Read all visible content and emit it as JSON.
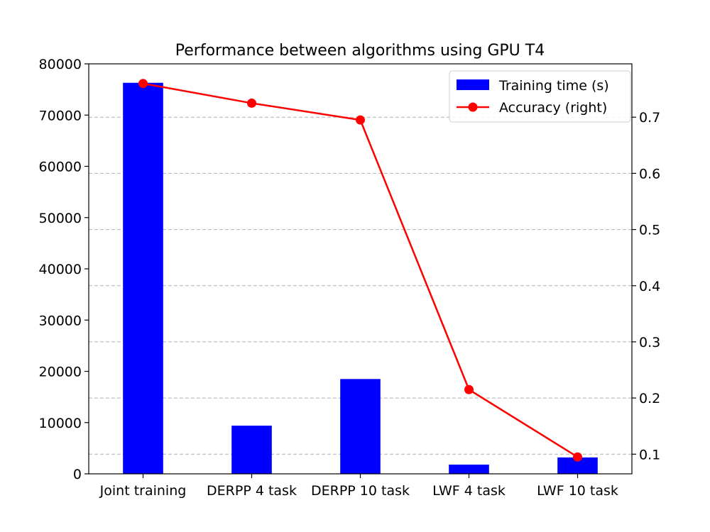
{
  "chart_data": {
    "type": "bar",
    "title": "Performance between algorithms using GPU T4",
    "categories": [
      "Joint training",
      "DERPP 4 task",
      "DERPP 10 task",
      "LWF 4 task",
      "LWF 10 task"
    ],
    "series": [
      {
        "name": "Training time (s)",
        "type": "bar",
        "axis": "left",
        "color": "#0000ff",
        "values": [
          76300,
          9400,
          18500,
          1800,
          3200
        ]
      },
      {
        "name": "Accuracy (right)",
        "type": "line",
        "axis": "right",
        "color": "#ff0000",
        "values": [
          0.76,
          0.725,
          0.695,
          0.215,
          0.095
        ]
      }
    ],
    "ylim_left": [
      0,
      80000
    ],
    "yticks_left": [
      "0",
      "10000",
      "20000",
      "30000",
      "40000",
      "50000",
      "60000",
      "70000",
      "80000"
    ],
    "ylim_right": [
      0.065,
      0.795
    ],
    "yticks_right": [
      "0.1",
      "0.2",
      "0.3",
      "0.4",
      "0.5",
      "0.6",
      "0.7"
    ],
    "yticks_right_values": [
      0.1,
      0.2,
      0.3,
      0.4,
      0.5,
      0.6,
      0.7
    ],
    "grid": "horizontal dashed (right axis)",
    "legend_position": "top-right"
  }
}
